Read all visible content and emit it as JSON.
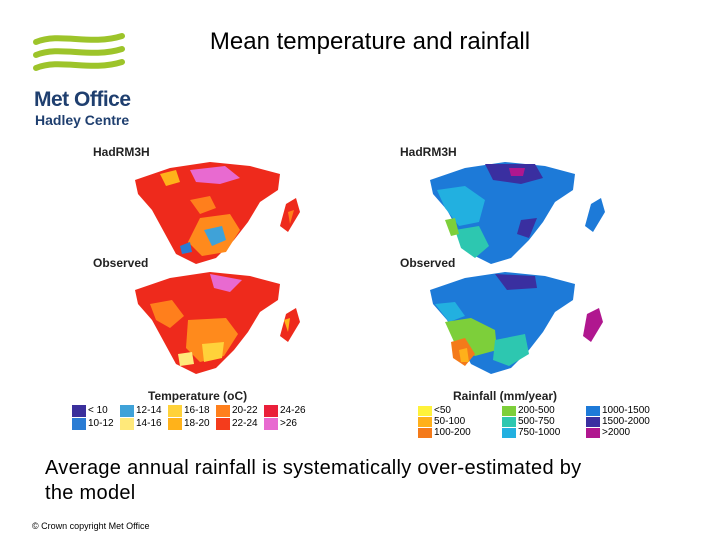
{
  "logo": {
    "name": "Met Office",
    "subtitle": "Hadley Centre"
  },
  "title": "Mean temperature and rainfall",
  "maps": {
    "model_label_left": "HadRM3H",
    "observed_label_left": "Observed",
    "model_label_right": "HadRM3H",
    "observed_label_right": "Observed"
  },
  "temperature_legend": {
    "title": "Temperature (oC)",
    "items": [
      {
        "label": "< 10",
        "color": "#3a2f9c"
      },
      {
        "label": "10-12",
        "color": "#2a7cd4"
      },
      {
        "label": "12-14",
        "color": "#3fa2d8"
      },
      {
        "label": "14-16",
        "color": "#ffe97a"
      },
      {
        "label": "16-18",
        "color": "#ffd23a"
      },
      {
        "label": "18-20",
        "color": "#ffb21a"
      },
      {
        "label": "20-22",
        "color": "#ff7f1c"
      },
      {
        "label": "22-24",
        "color": "#f43c1c"
      },
      {
        "label": "24-26",
        "color": "#ea1f3a"
      },
      {
        "label": ">26",
        "color": "#e86ad0"
      }
    ]
  },
  "rainfall_legend": {
    "title": "Rainfall (mm/year)",
    "items": [
      {
        "label": "<50",
        "color": "#fff23a"
      },
      {
        "label": "50-100",
        "color": "#ffb01a"
      },
      {
        "label": "100-200",
        "color": "#f47a1a"
      },
      {
        "label": "200-500",
        "color": "#7dcf3a"
      },
      {
        "label": "500-750",
        "color": "#2dc7b0"
      },
      {
        "label": "750-1000",
        "color": "#22b0e0"
      },
      {
        "label": "1000-1500",
        "color": "#1d7ad8"
      },
      {
        "label": "1500-2000",
        "color": "#3a2fa0"
      },
      {
        "label": ">2000",
        "color": "#b0178f"
      }
    ]
  },
  "caption": "Average annual rainfall is systematically over-estimated by the model",
  "footer": "© Crown copyright Met Office"
}
